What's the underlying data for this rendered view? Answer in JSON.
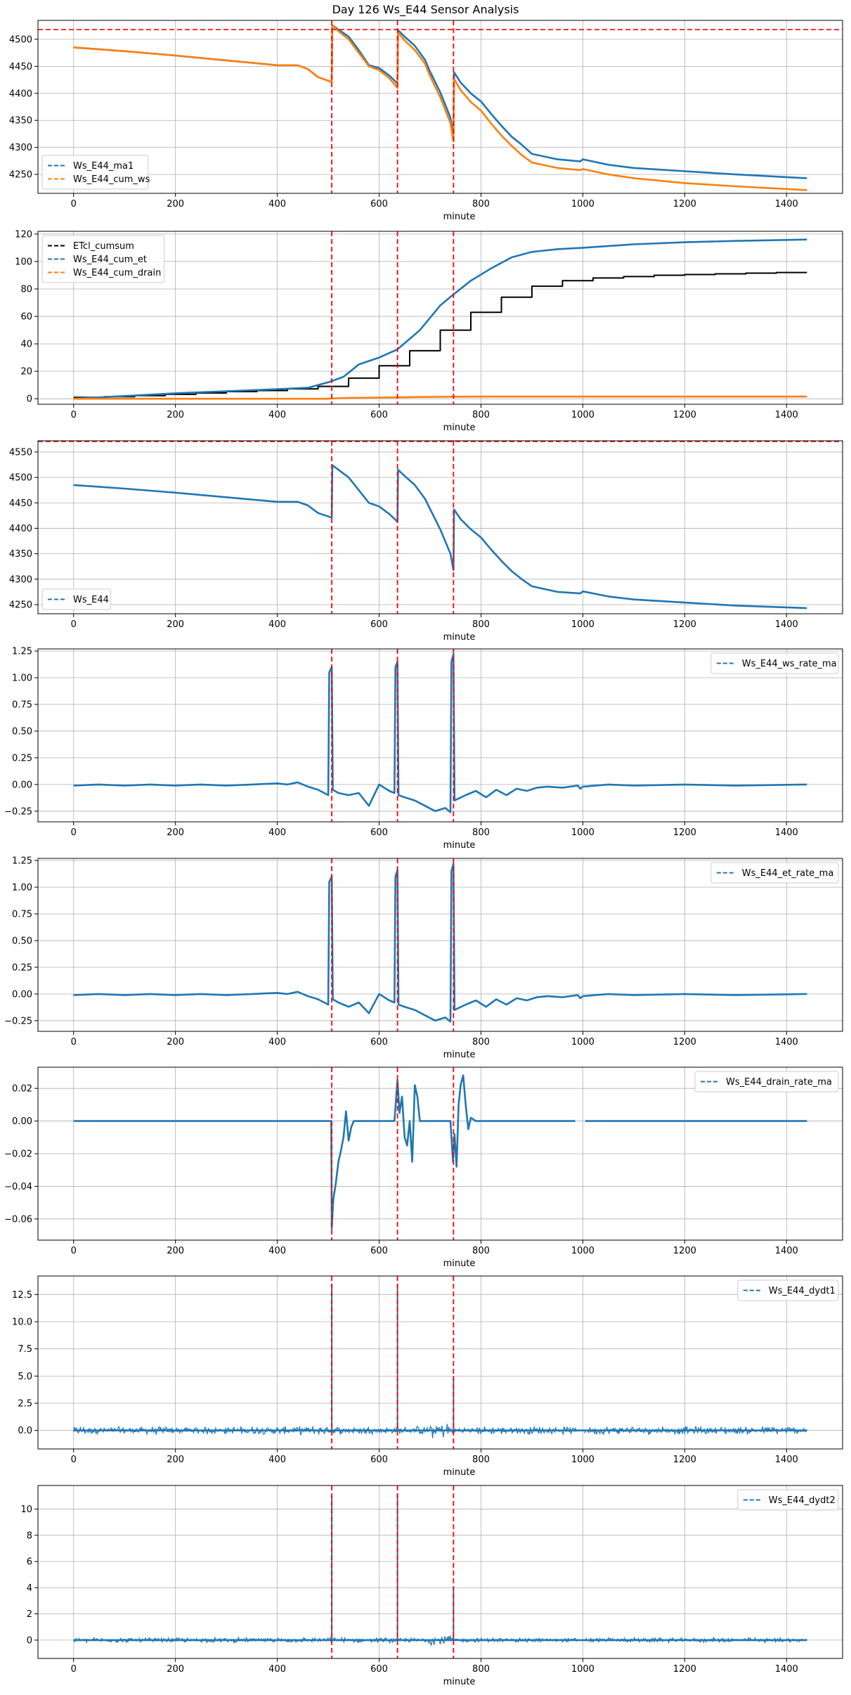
{
  "figure": {
    "title": "Day 126 Ws_E44 Sensor Analysis",
    "colors": {
      "blue": "#1f77b4",
      "orange": "#ff7f0e",
      "black": "#000000",
      "red": "#ff0000",
      "grid": "#b0b0b0",
      "axis": "#000000"
    }
  },
  "chart_data": [
    {
      "type": "line",
      "xlabel": "minute",
      "xlim": [
        -70,
        1510
      ],
      "ylim": [
        4215,
        4535
      ],
      "xticks": [
        0,
        200,
        400,
        600,
        800,
        1000,
        1200,
        1400
      ],
      "yticks": [
        4250,
        4300,
        4350,
        4400,
        4450,
        4500
      ],
      "legend_loc": "lower-left",
      "hlines": [
        4518
      ],
      "vlines": [
        507,
        636,
        746
      ],
      "series": [
        {
          "name": "Ws_E44_ma1",
          "color": "#1f77b4",
          "linestyle": "dashed",
          "legend": true,
          "x": [
            0,
            100,
            200,
            300,
            400,
            440,
            460,
            480,
            507,
            508,
            520,
            540,
            560,
            580,
            600,
            620,
            636,
            637,
            650,
            670,
            690,
            700,
            720,
            740,
            746,
            747,
            760,
            780,
            800,
            820,
            840,
            860,
            880,
            900,
            950,
            995,
            1000,
            1050,
            1100,
            1200,
            1300,
            1440
          ],
          "y": [
            4485,
            4478,
            4470,
            4461,
            4452,
            4452,
            4445,
            4430,
            4421,
            4526,
            4518,
            4505,
            4480,
            4452,
            4447,
            4433,
            4418,
            4517,
            4505,
            4488,
            4462,
            4440,
            4402,
            4355,
            4320,
            4439,
            4420,
            4400,
            4385,
            4362,
            4340,
            4320,
            4305,
            4288,
            4278,
            4274,
            4278,
            4268,
            4262,
            4256,
            4250,
            4243
          ]
        },
        {
          "name": "Ws_E44_cum_ws",
          "color": "#ff7f0e",
          "linestyle": "solid",
          "legend": true,
          "x": [
            0,
            100,
            200,
            300,
            400,
            440,
            460,
            480,
            507,
            508,
            520,
            540,
            560,
            580,
            600,
            620,
            636,
            637,
            650,
            670,
            690,
            700,
            720,
            740,
            746,
            747,
            760,
            780,
            800,
            820,
            840,
            860,
            880,
            900,
            950,
            995,
            1000,
            1050,
            1100,
            1200,
            1300,
            1440
          ],
          "y": [
            4485,
            4478,
            4470,
            4461,
            4452,
            4452,
            4445,
            4430,
            4421,
            4526,
            4515,
            4500,
            4475,
            4450,
            4443,
            4428,
            4410,
            4513,
            4498,
            4480,
            4455,
            4432,
            4393,
            4345,
            4311,
            4427,
            4406,
            4384,
            4368,
            4344,
            4322,
            4303,
            4286,
            4272,
            4262,
            4258,
            4260,
            4250,
            4243,
            4234,
            4228,
            4221
          ]
        }
      ]
    },
    {
      "type": "line",
      "xlabel": "minute",
      "xlim": [
        -70,
        1510
      ],
      "ylim": [
        -4,
        122
      ],
      "xticks": [
        0,
        200,
        400,
        600,
        800,
        1000,
        1200,
        1400
      ],
      "yticks": [
        0,
        20,
        40,
        60,
        80,
        100,
        120
      ],
      "legend_loc": "upper-left",
      "vlines": [
        507,
        636,
        746
      ],
      "series": [
        {
          "name": "ETcl_cumsum",
          "color": "#000000",
          "linestyle": "dashed",
          "legend": true,
          "step": true,
          "x": [
            0,
            60,
            120,
            180,
            240,
            300,
            360,
            420,
            480,
            540,
            600,
            660,
            720,
            780,
            840,
            900,
            960,
            1020,
            1080,
            1140,
            1200,
            1260,
            1320,
            1380,
            1440
          ],
          "y": [
            1,
            1.5,
            2.3,
            3.2,
            4.2,
            5.2,
            6,
            7.2,
            9,
            15,
            24,
            35,
            50,
            63,
            74,
            82,
            86,
            88,
            89,
            90,
            90.5,
            91,
            91.5,
            92,
            92
          ]
        },
        {
          "name": "Ws_E44_cum_et",
          "color": "#1f77b4",
          "linestyle": "solid",
          "legend": true,
          "x": [
            0,
            100,
            200,
            300,
            400,
            460,
            500,
            530,
            560,
            600,
            636,
            680,
            720,
            746,
            780,
            820,
            860,
            900,
            950,
            1000,
            1100,
            1200,
            1300,
            1440
          ],
          "y": [
            0,
            2,
            4,
            5.5,
            7,
            8,
            12,
            16,
            25,
            30,
            36,
            50,
            68,
            76,
            86,
            95,
            103,
            107,
            109,
            110,
            112.5,
            114,
            115,
            116
          ]
        },
        {
          "name": "Ws_E44_cum_drain",
          "color": "#ff7f0e",
          "linestyle": "solid",
          "legend": true,
          "x": [
            0,
            500,
            507,
            540,
            636,
            680,
            746,
            800,
            1440
          ],
          "y": [
            0,
            0,
            0.2,
            0.6,
            1,
            1.3,
            1.5,
            1.6,
            1.6
          ]
        }
      ]
    },
    {
      "type": "line",
      "xlabel": "minute",
      "xlim": [
        -70,
        1510
      ],
      "ylim": [
        4232,
        4572
      ],
      "xticks": [
        0,
        200,
        400,
        600,
        800,
        1000,
        1200,
        1400
      ],
      "yticks": [
        4250,
        4300,
        4350,
        4400,
        4450,
        4500,
        4550
      ],
      "legend_loc": "lower-left",
      "hlines": [
        4583
      ],
      "vlines": [
        507,
        636,
        746
      ],
      "series": [
        {
          "name": "Ws_E44",
          "color": "#1f77b4",
          "linestyle": "solid",
          "legend": true,
          "x": [
            0,
            100,
            200,
            300,
            400,
            440,
            460,
            480,
            507,
            508,
            520,
            540,
            560,
            580,
            600,
            620,
            636,
            637,
            650,
            670,
            690,
            700,
            720,
            740,
            746,
            747,
            760,
            780,
            800,
            820,
            840,
            860,
            880,
            900,
            950,
            995,
            1000,
            1050,
            1100,
            1200,
            1300,
            1440
          ],
          "y": [
            4485,
            4478,
            4470,
            4461,
            4452,
            4452,
            4445,
            4430,
            4421,
            4524,
            4515,
            4500,
            4475,
            4450,
            4443,
            4428,
            4413,
            4515,
            4503,
            4485,
            4458,
            4438,
            4398,
            4350,
            4318,
            4437,
            4418,
            4398,
            4382,
            4358,
            4336,
            4316,
            4300,
            4286,
            4275,
            4272,
            4276,
            4266,
            4260,
            4254,
            4248,
            4243
          ]
        }
      ]
    },
    {
      "type": "line",
      "xlabel": "minute",
      "xlim": [
        -70,
        1510
      ],
      "ylim": [
        -0.35,
        1.27
      ],
      "xticks": [
        0,
        200,
        400,
        600,
        800,
        1000,
        1200,
        1400
      ],
      "yticks": [
        -0.25,
        0.0,
        0.25,
        0.5,
        0.75,
        1.0,
        1.25
      ],
      "ytick_labels": [
        "−0.25",
        "0.00",
        "0.25",
        "0.50",
        "0.75",
        "1.00",
        "1.25"
      ],
      "legend_loc": "upper-right",
      "vlines": [
        507,
        636,
        746
      ],
      "series": [
        {
          "name": "Ws_E44_ws_rate_ma",
          "color": "#1f77b4",
          "linestyle": "dashed",
          "legend": true,
          "x": [
            0,
            50,
            100,
            150,
            200,
            250,
            300,
            350,
            400,
            420,
            440,
            460,
            480,
            500,
            502,
            507,
            509,
            520,
            540,
            560,
            580,
            600,
            620,
            630,
            632,
            636,
            638,
            650,
            670,
            690,
            710,
            730,
            740,
            742,
            746,
            748,
            770,
            790,
            810,
            830,
            850,
            870,
            890,
            910,
            930,
            960,
            990,
            995,
            1000,
            1050,
            1100,
            1200,
            1300,
            1440
          ],
          "y": [
            -0.01,
            0,
            -0.01,
            0,
            -0.01,
            0,
            -0.01,
            0,
            0.01,
            0,
            0.02,
            -0.02,
            -0.05,
            -0.1,
            1.05,
            1.1,
            -0.05,
            -0.08,
            -0.1,
            -0.08,
            -0.2,
            0,
            -0.06,
            -0.08,
            1.1,
            1.15,
            -0.1,
            -0.12,
            -0.15,
            -0.2,
            -0.25,
            -0.22,
            -0.26,
            1.15,
            1.22,
            -0.15,
            -0.1,
            -0.06,
            -0.12,
            -0.05,
            -0.1,
            -0.04,
            -0.06,
            -0.03,
            -0.02,
            -0.03,
            -0.01,
            -0.04,
            -0.02,
            0,
            -0.01,
            0,
            -0.01,
            0
          ]
        }
      ]
    },
    {
      "type": "line",
      "xlabel": "minute",
      "xlim": [
        -70,
        1510
      ],
      "ylim": [
        -0.35,
        1.27
      ],
      "xticks": [
        0,
        200,
        400,
        600,
        800,
        1000,
        1200,
        1400
      ],
      "yticks": [
        -0.25,
        0.0,
        0.25,
        0.5,
        0.75,
        1.0,
        1.25
      ],
      "ytick_labels": [
        "−0.25",
        "0.00",
        "0.25",
        "0.50",
        "0.75",
        "1.00",
        "1.25"
      ],
      "legend_loc": "upper-right",
      "vlines": [
        507,
        636,
        746
      ],
      "series": [
        {
          "name": "Ws_E44_et_rate_ma",
          "color": "#1f77b4",
          "linestyle": "dashed",
          "legend": true,
          "x": [
            0,
            50,
            100,
            150,
            200,
            250,
            300,
            350,
            400,
            420,
            440,
            460,
            480,
            500,
            502,
            507,
            509,
            520,
            540,
            560,
            580,
            600,
            620,
            630,
            632,
            636,
            638,
            650,
            670,
            690,
            710,
            730,
            740,
            742,
            746,
            748,
            770,
            790,
            810,
            830,
            850,
            870,
            890,
            910,
            930,
            960,
            990,
            995,
            1000,
            1050,
            1100,
            1200,
            1300,
            1440
          ],
          "y": [
            -0.01,
            0,
            -0.01,
            0,
            -0.01,
            0,
            -0.01,
            0,
            0.01,
            0,
            0.02,
            -0.02,
            -0.05,
            -0.1,
            1.05,
            1.1,
            -0.05,
            -0.08,
            -0.12,
            -0.08,
            -0.18,
            0,
            -0.06,
            -0.08,
            1.1,
            1.16,
            -0.1,
            -0.12,
            -0.15,
            -0.2,
            -0.25,
            -0.22,
            -0.26,
            1.15,
            1.22,
            -0.15,
            -0.1,
            -0.06,
            -0.12,
            -0.05,
            -0.1,
            -0.04,
            -0.06,
            -0.03,
            -0.02,
            -0.03,
            -0.01,
            -0.04,
            -0.02,
            0,
            -0.01,
            0,
            -0.01,
            0
          ]
        }
      ]
    },
    {
      "type": "line",
      "xlabel": "minute",
      "xlim": [
        -70,
        1510
      ],
      "ylim": [
        -0.073,
        0.033
      ],
      "xticks": [
        0,
        200,
        400,
        600,
        800,
        1000,
        1200,
        1400
      ],
      "yticks": [
        -0.06,
        -0.04,
        -0.02,
        0.0,
        0.02
      ],
      "ytick_labels": [
        "−0.06",
        "−0.04",
        "−0.02",
        "0.00",
        "0.02"
      ],
      "legend_loc": "upper-right",
      "vlines": [
        507,
        636,
        746
      ],
      "series": [
        {
          "name": "Ws_E44_drain_rate_ma",
          "color": "#1f77b4",
          "linestyle": "dashed",
          "legend": true,
          "x": [
            0,
            506,
            507,
            510,
            515,
            520,
            525,
            530,
            535,
            540,
            545,
            550,
            555,
            560,
            630,
            636,
            640,
            645,
            650,
            655,
            660,
            665,
            670,
            675,
            680,
            690,
            740,
            745,
            748,
            752,
            756,
            760,
            765,
            770,
            775,
            780,
            790,
            985
          ],
          "y": [
            0,
            0,
            -0.066,
            -0.048,
            -0.038,
            -0.025,
            -0.018,
            -0.01,
            0.006,
            -0.012,
            -0.004,
            0,
            0,
            0,
            0,
            0.025,
            0.005,
            0.015,
            -0.01,
            -0.015,
            0,
            -0.025,
            0.022,
            0.015,
            0,
            0,
            0,
            -0.025,
            -0.008,
            -0.028,
            0.01,
            0.022,
            0.028,
            0.01,
            -0.005,
            0.002,
            0,
            0
          ]
        },
        {
          "name": "Ws_E44_drain_rate_ma_2",
          "color": "#1f77b4",
          "linestyle": "solid",
          "legend": false,
          "x": [
            1005,
            1440
          ],
          "y": [
            0,
            0
          ]
        }
      ]
    },
    {
      "type": "line",
      "xlabel": "minute",
      "xlim": [
        -70,
        1510
      ],
      "ylim": [
        -1.7,
        14.2
      ],
      "xticks": [
        0,
        200,
        400,
        600,
        800,
        1000,
        1200,
        1400
      ],
      "yticks": [
        0.0,
        2.5,
        5.0,
        7.5,
        10.0,
        12.5
      ],
      "ytick_labels": [
        "0.0",
        "2.5",
        "5.0",
        "7.5",
        "10.0",
        "12.5"
      ],
      "legend_loc": "upper-right",
      "vlines": [
        507,
        636,
        746
      ],
      "noise_band": 0.3,
      "spikes": [
        [
          507,
          13.5
        ],
        [
          636,
          13.5
        ],
        [
          746,
          5.0
        ]
      ],
      "series": [
        {
          "name": "Ws_E44_dydt1",
          "color": "#1f77b4",
          "linestyle": "dashed",
          "legend": true,
          "x": [
            0,
            1440
          ],
          "y": [
            0,
            0
          ]
        }
      ]
    },
    {
      "type": "line",
      "xlabel": "minute",
      "xlim": [
        -70,
        1510
      ],
      "ylim": [
        -1.4,
        11.8
      ],
      "xticks": [
        0,
        200,
        400,
        600,
        800,
        1000,
        1200,
        1400
      ],
      "yticks": [
        0,
        2,
        4,
        6,
        8,
        10
      ],
      "legend_loc": "upper-right",
      "vlines": [
        507,
        636,
        746
      ],
      "noise_band": 0.15,
      "spikes": [
        [
          507,
          11.0
        ],
        [
          636,
          11.2
        ],
        [
          746,
          4.0
        ]
      ],
      "series": [
        {
          "name": "Ws_E44_dydt2",
          "color": "#1f77b4",
          "linestyle": "dashed",
          "legend": true,
          "x": [
            0,
            1440
          ],
          "y": [
            0,
            0
          ]
        }
      ]
    }
  ]
}
